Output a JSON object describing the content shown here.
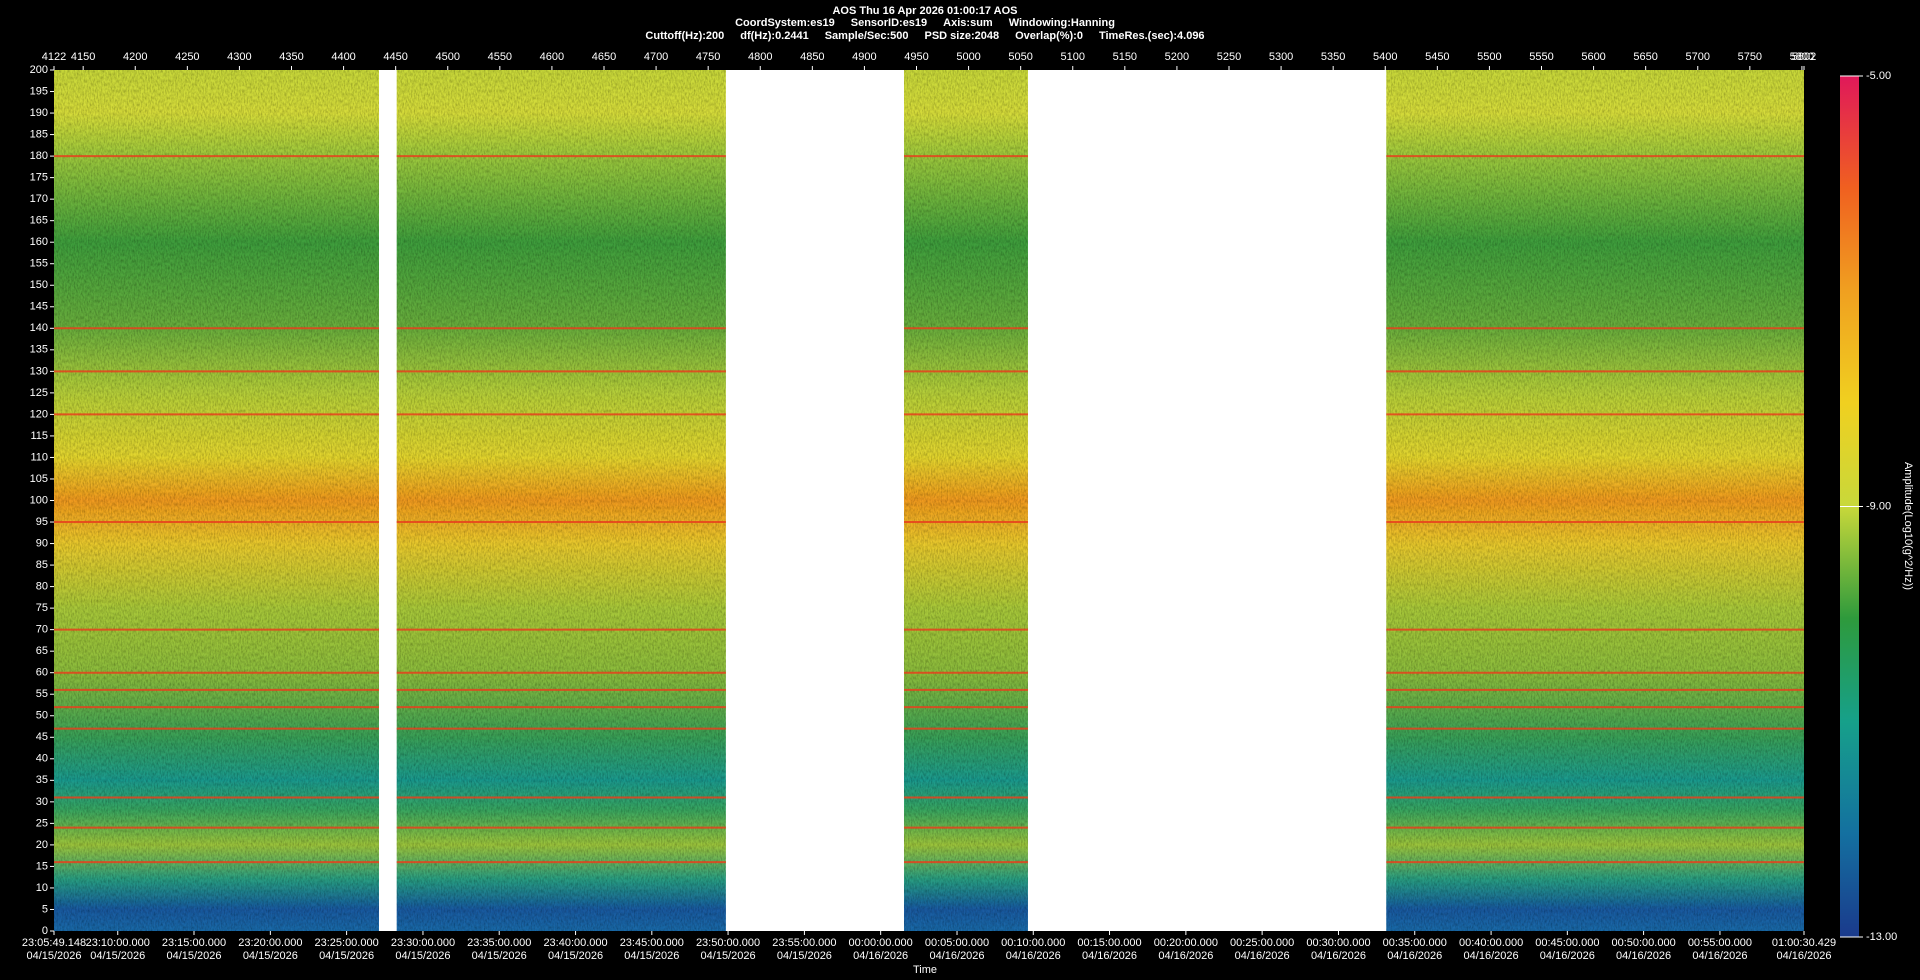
{
  "chart_data": {
    "type": "spectrogram",
    "header": [
      [
        "AOS  Thu 16 Apr 2026 01:00:17  AOS"
      ],
      [
        "CoordSystem:es19",
        "SensorID:es19",
        "Axis:sum",
        "Windowing:Hanning"
      ],
      [
        "Cuttoff(Hz):200",
        "df(Hz):0.2441",
        "Sample/Sec:500",
        "PSD size:2048",
        "Overlap(%):0",
        "TimeRes.(sec):4.096"
      ]
    ],
    "xlabel": "Time",
    "xlim": [
      4122,
      5802
    ],
    "xticks": [
      4122,
      4150,
      4200,
      4250,
      4300,
      4350,
      4400,
      4450,
      4500,
      4550,
      4600,
      4650,
      4700,
      4750,
      4800,
      4850,
      4900,
      4950,
      5000,
      5050,
      5100,
      5150,
      5200,
      5250,
      5300,
      5350,
      5400,
      5450,
      5500,
      5550,
      5600,
      5650,
      5700,
      5750,
      5800,
      5802
    ],
    "x2ticks": [
      {
        "value": 4122,
        "label": "23:05:49.148"
      },
      {
        "value": 4183.2,
        "label": "23:10:00.000"
      },
      {
        "value": 4256.4,
        "label": "23:15:00.000"
      },
      {
        "value": 4329.7,
        "label": "23:20:00.000"
      },
      {
        "value": 4402.9,
        "label": "23:25:00.000"
      },
      {
        "value": 4476.2,
        "label": "23:30:00.000"
      },
      {
        "value": 4549.4,
        "label": "23:35:00.000"
      },
      {
        "value": 4622.7,
        "label": "23:40:00.000"
      },
      {
        "value": 4695.9,
        "label": "23:45:00.000"
      },
      {
        "value": 4769.1,
        "label": "23:50:00.000"
      },
      {
        "value": 4842.4,
        "label": "23:55:00.000"
      },
      {
        "value": 4915.6,
        "label": "00:00:00.000"
      },
      {
        "value": 4988.9,
        "label": "00:05:00.000"
      },
      {
        "value": 5062.1,
        "label": "00:10:00.000"
      },
      {
        "value": 5135.3,
        "label": "00:15:00.000"
      },
      {
        "value": 5208.6,
        "label": "00:20:00.000"
      },
      {
        "value": 5281.8,
        "label": "00:25:00.000"
      },
      {
        "value": 5355.1,
        "label": "00:30:00.000"
      },
      {
        "value": 5428.3,
        "label": "00:35:00.000"
      },
      {
        "value": 5501.6,
        "label": "00:40:00.000"
      },
      {
        "value": 5574.8,
        "label": "00:45:00.000"
      },
      {
        "value": 5648.0,
        "label": "00:50:00.000"
      },
      {
        "value": 5721.3,
        "label": "00:55:00.000"
      },
      {
        "value": 5802,
        "label": "01:00:30.429"
      }
    ],
    "x2tick_dates": [
      "04/15/2026",
      "04/15/2026",
      "04/15/2026",
      "04/15/2026",
      "04/15/2026",
      "04/15/2026",
      "04/15/2026",
      "04/15/2026",
      "04/15/2026",
      "04/15/2026",
      "04/15/2026",
      "04/16/2026",
      "04/16/2026",
      "04/16/2026",
      "04/16/2026",
      "04/16/2026",
      "04/16/2026",
      "04/16/2026",
      "04/16/2026",
      "04/16/2026",
      "04/16/2026",
      "04/16/2026",
      "04/16/2026",
      "04/16/2026"
    ],
    "ylim": [
      0,
      200
    ],
    "yticks": [
      0,
      5,
      10,
      15,
      20,
      25,
      30,
      35,
      40,
      45,
      50,
      55,
      60,
      65,
      70,
      75,
      80,
      85,
      90,
      95,
      100,
      105,
      110,
      115,
      120,
      125,
      130,
      135,
      140,
      145,
      150,
      155,
      160,
      165,
      170,
      175,
      180,
      185,
      190,
      195,
      200
    ],
    "segments": [
      [
        4122,
        4434
      ],
      [
        4451,
        4767
      ],
      [
        4938,
        5057
      ],
      [
        5401,
        5802
      ]
    ],
    "tones": [
      180,
      140,
      130,
      120,
      95,
      70,
      60,
      56,
      52,
      47,
      31,
      24,
      16
    ],
    "tone_color": "#e8401c",
    "colorbar": {
      "label": "Amplitude(Log10(g^2/Hz))",
      "lim": [
        -13,
        -5
      ],
      "ticks": [
        {
          "value": -5,
          "label": "-5.00"
        },
        {
          "value": -9,
          "label": "-9.00"
        },
        {
          "value": -13,
          "label": "-13.00"
        }
      ]
    }
  }
}
